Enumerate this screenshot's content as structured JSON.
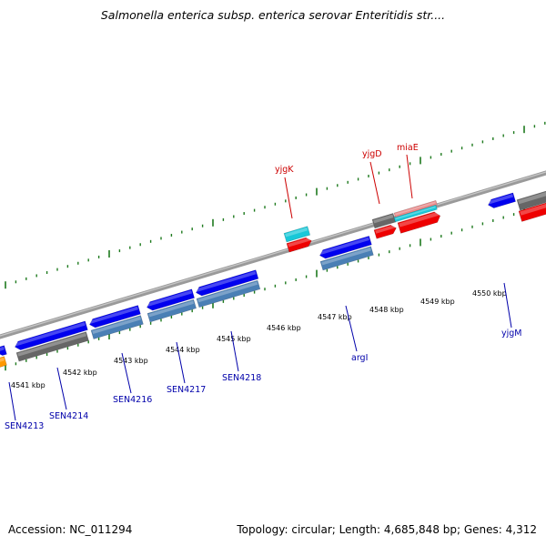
{
  "title": "Salmonella enterica subsp. enterica serovar Enteritidis str....",
  "footer": {
    "accession": "Accession: NC_011294",
    "topology": "Topology: circular; Length: 4,685,848 bp; Genes: 4,312"
  },
  "colors": {
    "backbone": "#8c8c8c",
    "tick": "#1e7a1e",
    "label_forward": "#cc0000",
    "label_reverse": "#0000aa",
    "blue": "#0000ee",
    "steelblue": "#4a7fb5",
    "gray": "#666666",
    "red": "#ee0000",
    "cyan": "#18c8d8",
    "pink": "#e88a8a",
    "orange": "#ff9900"
  },
  "scale": {
    "labels": [
      "4541 kbp",
      "4542 kbp",
      "4543 kbp",
      "4544 kbp",
      "4545 kbp",
      "4546 kbp",
      "4547 kbp",
      "4548 kbp",
      "4549 kbp",
      "4550 kbp"
    ]
  },
  "genes": {
    "forward_labels": [
      "yjgK",
      "yjgD",
      "miaE"
    ],
    "reverse_labels": [
      "SEN4213",
      "SEN4214",
      "SEN4216",
      "SEN4217",
      "SEN4218",
      "argI",
      "yjgM"
    ]
  }
}
